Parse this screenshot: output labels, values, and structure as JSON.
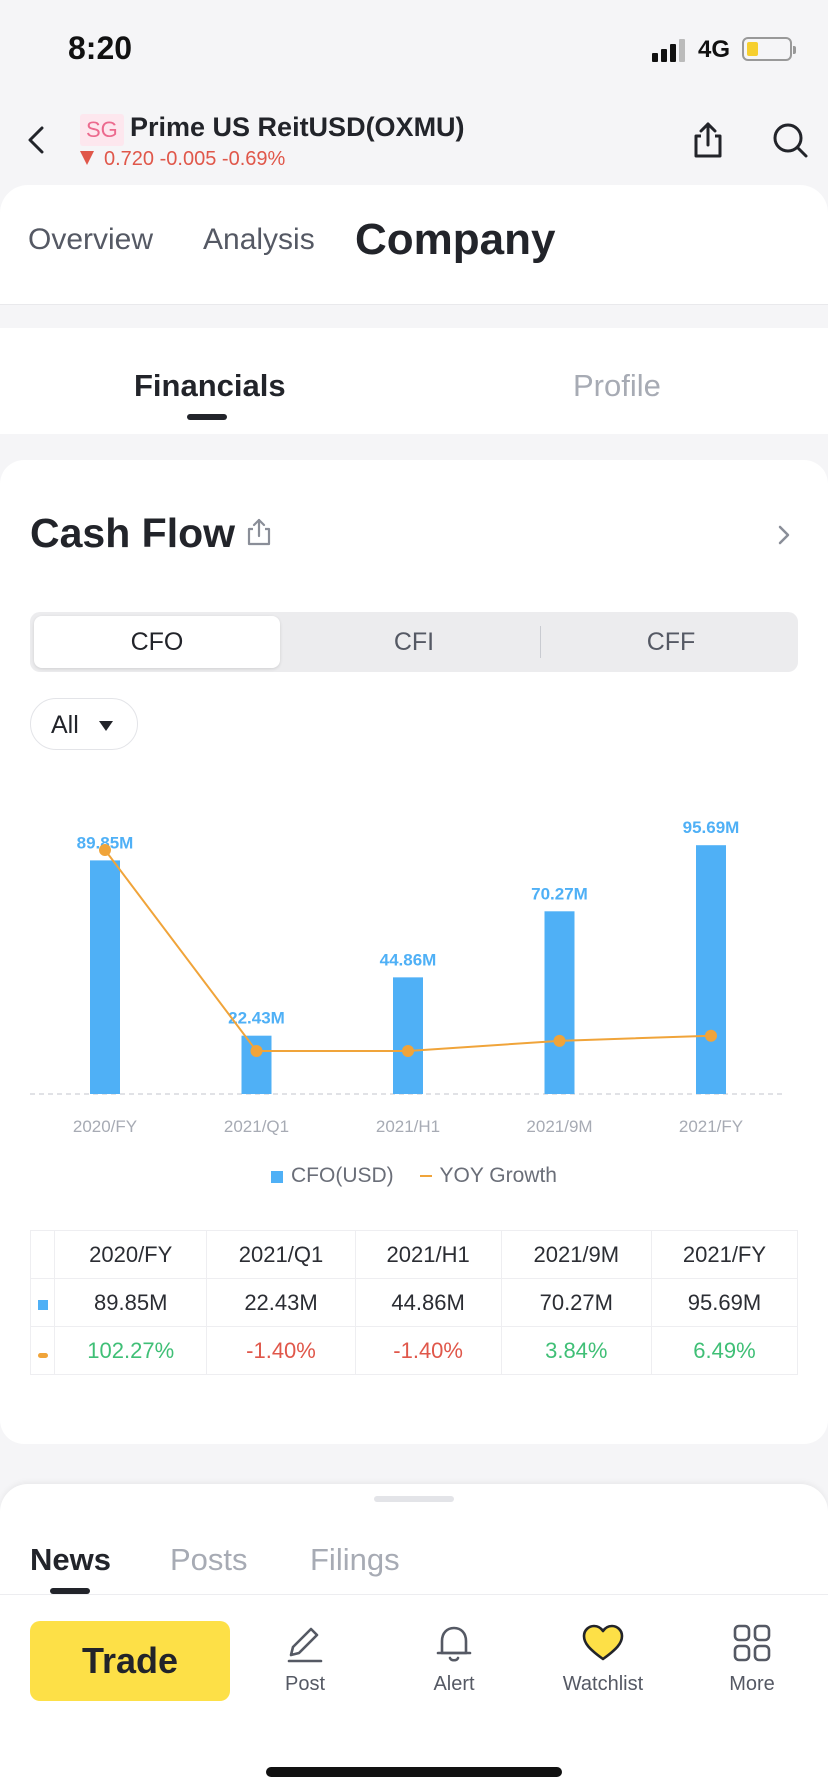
{
  "status_bar": {
    "time": "8:20",
    "network": "4G"
  },
  "header": {
    "badge": "SG",
    "title": "Prime US ReitUSD(OXMU)",
    "price": "0.720",
    "change": "-0.005",
    "change_pct": "-0.69%"
  },
  "top_tabs": [
    {
      "label": "Overview"
    },
    {
      "label": "Analysis"
    },
    {
      "label": "Company",
      "active": true
    }
  ],
  "sub_tabs": [
    {
      "label": "Financials",
      "active": true
    },
    {
      "label": "Profile"
    }
  ],
  "card": {
    "title": "Cash Flow",
    "segments": [
      {
        "label": "CFO",
        "active": true
      },
      {
        "label": "CFI"
      },
      {
        "label": "CFF"
      }
    ],
    "period_filter": "All"
  },
  "chart_data": {
    "type": "bar",
    "categories": [
      "2020/FY",
      "2021/Q1",
      "2021/H1",
      "2021/9M",
      "2021/FY"
    ],
    "series": [
      {
        "name": "CFO(USD)",
        "type": "bar",
        "values": [
          89.85,
          22.43,
          44.86,
          70.27,
          95.69
        ],
        "labels": [
          "89.85M",
          "22.43M",
          "44.86M",
          "70.27M",
          "95.69M"
        ],
        "color": "#4fb0f6"
      },
      {
        "name": "YOY Growth",
        "type": "line",
        "values": [
          102.27,
          -1.4,
          -1.4,
          3.84,
          6.49
        ],
        "labels": [
          "102.27%",
          "-1.40%",
          "-1.40%",
          "3.84%",
          "6.49%"
        ],
        "color": "#f0a43a"
      }
    ],
    "ylim": [
      0,
      100
    ],
    "y2lim": [
      -1.4,
      102.27
    ],
    "legend": "bottom",
    "grid": false
  },
  "table": {
    "headers": [
      "2020/FY",
      "2021/Q1",
      "2021/H1",
      "2021/9M",
      "2021/FY"
    ],
    "cfo_row": [
      "89.85M",
      "22.43M",
      "44.86M",
      "70.27M",
      "95.69M"
    ],
    "yoy_row": [
      "102.27%",
      "-1.40%",
      "-1.40%",
      "3.84%",
      "6.49%"
    ]
  },
  "news_tabs": [
    {
      "label": "News",
      "active": true
    },
    {
      "label": "Posts"
    },
    {
      "label": "Filings"
    }
  ],
  "toolbar": {
    "trade": "Trade",
    "items": [
      {
        "label": "Post",
        "icon": "pencil-icon"
      },
      {
        "label": "Alert",
        "icon": "bell-icon"
      },
      {
        "label": "Watchlist",
        "icon": "heart-icon"
      },
      {
        "label": "More",
        "icon": "grid-icon"
      }
    ]
  },
  "colors": {
    "bar": "#4fb0f6",
    "line": "#f0a43a",
    "positive": "#3fbf76",
    "negative": "#e0574a",
    "trade": "#fde047"
  }
}
